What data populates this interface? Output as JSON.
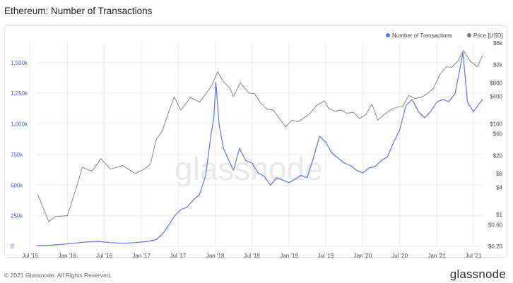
{
  "title": "Ethereum: Number of Transactions",
  "footer": {
    "copyright": "© 2021 Glassnode. All Rights Reserved.",
    "logo": "glassnode"
  },
  "watermark": "glassnode",
  "colors": {
    "transactions": "#5b74ea",
    "price": "#7a7a7a",
    "grid": "#ececec",
    "left_axis": "#4a5fe0"
  },
  "chart_data": {
    "type": "line",
    "title": "Ethereum: Number of Transactions",
    "legend_placement": "top-right",
    "grid": true,
    "x_ticks": [
      "Jul '15",
      "Jan '16",
      "Jul '16",
      "Jan '17",
      "Jul '17",
      "Jan '18",
      "Jul '18",
      "Jan '19",
      "Jul '19",
      "Jan '20",
      "Jul '20",
      "Jan '21",
      "Jul '21"
    ],
    "x_range": [
      "2015-07-30",
      "2021-08-15"
    ],
    "y_left": {
      "ticks": [
        "0",
        "250k",
        "500k",
        "750k",
        "1,000k",
        "1,250k",
        "1,500k"
      ],
      "range": [
        0,
        1660000
      ]
    },
    "y_right": {
      "scale": "log",
      "ticks": [
        "$0.20",
        "$0.60",
        "$1",
        "$4",
        "$8",
        "$20",
        "$60",
        "$100",
        "$400",
        "$800",
        "$2k",
        "$6k"
      ],
      "range": [
        0.2,
        6000
      ]
    },
    "series": [
      {
        "name": "Number of Transactions",
        "axis": "left",
        "points": [
          [
            "2015-08-01",
            5000
          ],
          [
            "2015-10-01",
            8000
          ],
          [
            "2015-12-01",
            15000
          ],
          [
            "2016-02-01",
            25000
          ],
          [
            "2016-04-01",
            35000
          ],
          [
            "2016-06-01",
            40000
          ],
          [
            "2016-08-01",
            30000
          ],
          [
            "2016-10-01",
            25000
          ],
          [
            "2016-12-01",
            30000
          ],
          [
            "2017-02-01",
            40000
          ],
          [
            "2017-03-15",
            55000
          ],
          [
            "2017-04-15",
            100000
          ],
          [
            "2017-05-15",
            170000
          ],
          [
            "2017-06-15",
            250000
          ],
          [
            "2017-07-15",
            300000
          ],
          [
            "2017-08-15",
            320000
          ],
          [
            "2017-09-15",
            380000
          ],
          [
            "2017-10-15",
            420000
          ],
          [
            "2017-11-15",
            580000
          ],
          [
            "2017-12-10",
            900000
          ],
          [
            "2017-12-25",
            1050000
          ],
          [
            "2018-01-04",
            1340000
          ],
          [
            "2018-01-20",
            1000000
          ],
          [
            "2018-02-10",
            800000
          ],
          [
            "2018-03-01",
            730000
          ],
          [
            "2018-04-01",
            620000
          ],
          [
            "2018-05-01",
            800000
          ],
          [
            "2018-06-01",
            700000
          ],
          [
            "2018-07-01",
            680000
          ],
          [
            "2018-08-01",
            600000
          ],
          [
            "2018-09-01",
            570000
          ],
          [
            "2018-10-01",
            500000
          ],
          [
            "2018-11-01",
            560000
          ],
          [
            "2018-12-01",
            540000
          ],
          [
            "2019-01-01",
            520000
          ],
          [
            "2019-02-01",
            550000
          ],
          [
            "2019-03-01",
            580000
          ],
          [
            "2019-04-01",
            560000
          ],
          [
            "2019-05-01",
            720000
          ],
          [
            "2019-06-01",
            900000
          ],
          [
            "2019-07-01",
            850000
          ],
          [
            "2019-08-01",
            760000
          ],
          [
            "2019-09-01",
            720000
          ],
          [
            "2019-10-01",
            680000
          ],
          [
            "2019-11-01",
            660000
          ],
          [
            "2019-12-01",
            620000
          ],
          [
            "2020-01-01",
            600000
          ],
          [
            "2020-02-01",
            640000
          ],
          [
            "2020-03-01",
            650000
          ],
          [
            "2020-04-01",
            700000
          ],
          [
            "2020-05-01",
            730000
          ],
          [
            "2020-06-01",
            850000
          ],
          [
            "2020-07-01",
            950000
          ],
          [
            "2020-08-01",
            1150000
          ],
          [
            "2020-09-01",
            1200000
          ],
          [
            "2020-10-01",
            1100000
          ],
          [
            "2020-11-01",
            1050000
          ],
          [
            "2020-12-01",
            1100000
          ],
          [
            "2021-01-01",
            1180000
          ],
          [
            "2021-02-01",
            1200000
          ],
          [
            "2021-03-01",
            1180000
          ],
          [
            "2021-04-01",
            1250000
          ],
          [
            "2021-05-10",
            1580000
          ],
          [
            "2021-06-01",
            1180000
          ],
          [
            "2021-07-01",
            1100000
          ],
          [
            "2021-08-15",
            1200000
          ]
        ]
      },
      {
        "name": "Price [USD]",
        "axis": "right",
        "points": [
          [
            "2015-08-07",
            2.8
          ],
          [
            "2015-10-01",
            0.7
          ],
          [
            "2015-11-01",
            0.9
          ],
          [
            "2016-01-01",
            0.95
          ],
          [
            "2016-02-15",
            4
          ],
          [
            "2016-03-15",
            11
          ],
          [
            "2016-05-01",
            9
          ],
          [
            "2016-06-15",
            17
          ],
          [
            "2016-08-01",
            10
          ],
          [
            "2016-10-01",
            12
          ],
          [
            "2016-12-01",
            8
          ],
          [
            "2017-01-15",
            10
          ],
          [
            "2017-02-15",
            13
          ],
          [
            "2017-03-15",
            45
          ],
          [
            "2017-04-15",
            70
          ],
          [
            "2017-05-15",
            180
          ],
          [
            "2017-06-12",
            390
          ],
          [
            "2017-07-15",
            200
          ],
          [
            "2017-09-01",
            380
          ],
          [
            "2017-10-15",
            300
          ],
          [
            "2017-11-15",
            450
          ],
          [
            "2017-12-15",
            700
          ],
          [
            "2018-01-13",
            1400
          ],
          [
            "2018-02-10",
            850
          ],
          [
            "2018-03-15",
            600
          ],
          [
            "2018-04-01",
            400
          ],
          [
            "2018-05-05",
            800
          ],
          [
            "2018-06-15",
            480
          ],
          [
            "2018-07-15",
            460
          ],
          [
            "2018-08-15",
            280
          ],
          [
            "2018-09-15",
            210
          ],
          [
            "2018-10-15",
            200
          ],
          [
            "2018-11-15",
            130
          ],
          [
            "2018-12-15",
            85
          ],
          [
            "2019-01-15",
            120
          ],
          [
            "2019-02-15",
            110
          ],
          [
            "2019-03-15",
            135
          ],
          [
            "2019-04-15",
            170
          ],
          [
            "2019-05-15",
            250
          ],
          [
            "2019-06-25",
            320
          ],
          [
            "2019-07-15",
            220
          ],
          [
            "2019-08-15",
            190
          ],
          [
            "2019-09-15",
            200
          ],
          [
            "2019-10-15",
            170
          ],
          [
            "2019-11-15",
            180
          ],
          [
            "2019-12-15",
            130
          ],
          [
            "2020-01-15",
            160
          ],
          [
            "2020-02-15",
            270
          ],
          [
            "2020-03-15",
            120
          ],
          [
            "2020-04-15",
            160
          ],
          [
            "2020-05-15",
            200
          ],
          [
            "2020-06-15",
            230
          ],
          [
            "2020-07-15",
            240
          ],
          [
            "2020-08-15",
            420
          ],
          [
            "2020-09-15",
            360
          ],
          [
            "2020-10-15",
            380
          ],
          [
            "2020-11-15",
            460
          ],
          [
            "2020-12-15",
            600
          ],
          [
            "2021-01-15",
            1200
          ],
          [
            "2021-02-15",
            1800
          ],
          [
            "2021-03-15",
            1750
          ],
          [
            "2021-04-15",
            2400
          ],
          [
            "2021-05-12",
            4100
          ],
          [
            "2021-06-15",
            2400
          ],
          [
            "2021-07-20",
            1800
          ],
          [
            "2021-08-15",
            3200
          ]
        ]
      }
    ]
  }
}
